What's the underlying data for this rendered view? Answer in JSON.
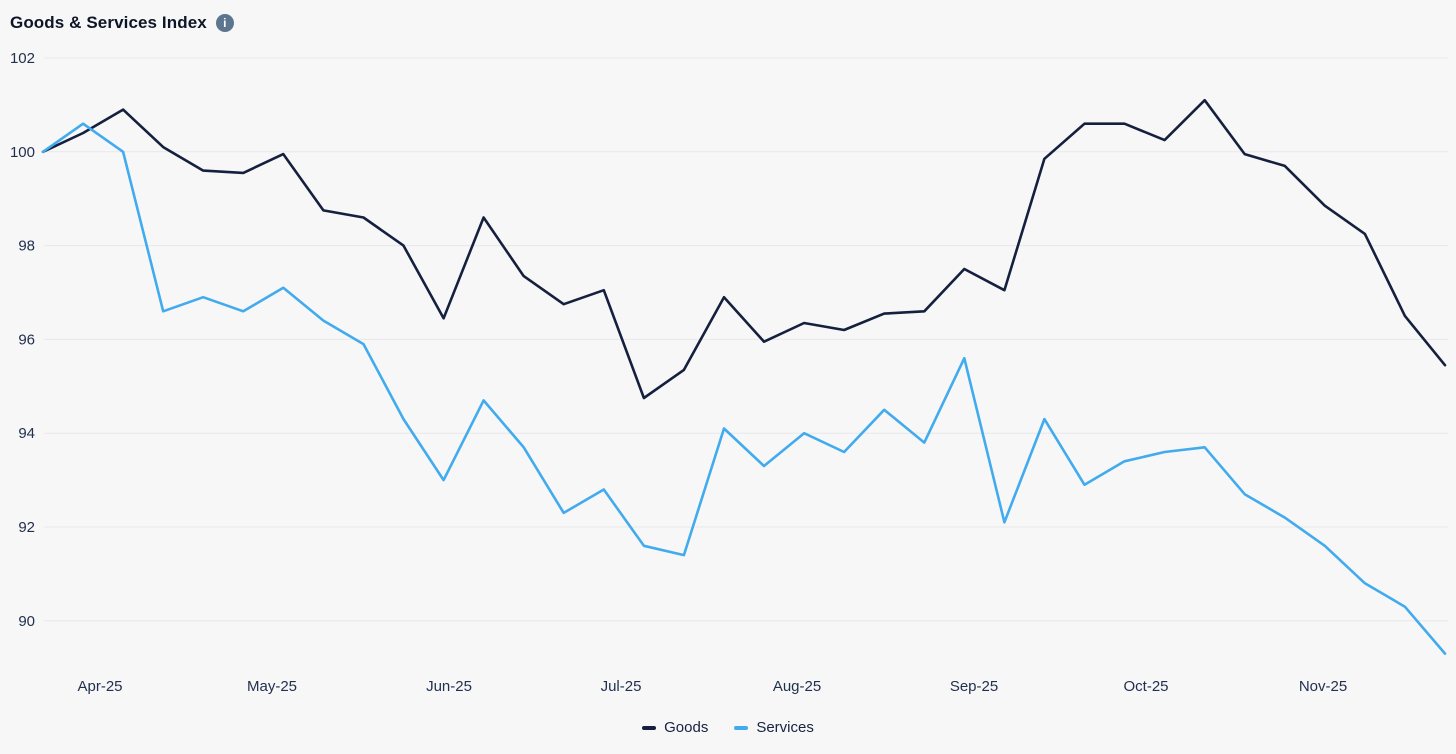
{
  "header": {
    "info_icon_glyph": "i"
  },
  "chart_data": {
    "type": "line",
    "title": "Goods & Services Index",
    "xlabel": "",
    "ylabel": "",
    "x_tick_labels": [
      "Apr-25",
      "May-25",
      "Jun-25",
      "Jul-25",
      "Aug-25",
      "Sep-25",
      "Oct-25",
      "Nov-25"
    ],
    "y_ticks": [
      102,
      100,
      98,
      96,
      94,
      92,
      90
    ],
    "ylim": [
      89,
      102
    ],
    "grid": true,
    "legend_position": "bottom",
    "background_color": "#f7f7f8",
    "gridline_color": "#e8e8ea",
    "axis_label_color": "#22304e",
    "series": [
      {
        "name": "Goods",
        "color": "#14203e",
        "values": [
          100,
          100.4,
          100.9,
          100.1,
          99.6,
          99.55,
          99.95,
          98.75,
          98.6,
          98.0,
          96.45,
          98.6,
          97.35,
          96.75,
          97.05,
          94.75,
          95.35,
          96.9,
          95.95,
          96.35,
          96.2,
          96.55,
          96.6,
          97.5,
          97.05,
          99.85,
          100.6,
          100.6,
          100.25,
          101.1,
          99.95,
          99.7,
          98.85,
          98.25,
          96.5,
          95.45
        ]
      },
      {
        "name": "Services",
        "color": "#41abee",
        "values": [
          100,
          100.6,
          100,
          96.6,
          96.9,
          96.6,
          97.1,
          96.4,
          95.9,
          94.3,
          93.0,
          94.7,
          93.7,
          92.3,
          92.8,
          91.6,
          91.4,
          94.1,
          93.3,
          94.0,
          93.6,
          94.5,
          93.8,
          95.6,
          92.1,
          94.3,
          92.9,
          93.4,
          93.6,
          93.7,
          92.7,
          92.2,
          91.6,
          90.8,
          90.3,
          89.3
        ]
      }
    ]
  }
}
